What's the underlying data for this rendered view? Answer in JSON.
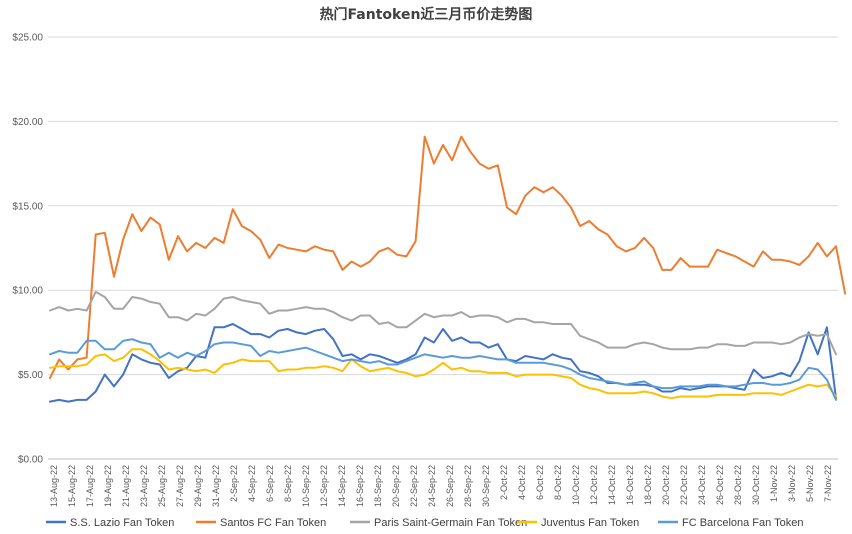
{
  "chart_data": {
    "type": "line",
    "title": "热门Fantoken近三月币价走势图",
    "xlabel": "",
    "ylabel": "",
    "ylim": [
      0,
      25
    ],
    "y_ticks": [
      "$0.00",
      "$5.00",
      "$10.00",
      "$15.00",
      "$20.00",
      "$25.00"
    ],
    "y_tick_values": [
      0,
      5,
      10,
      15,
      20,
      25
    ],
    "grid": "horizontal",
    "legend_position": "bottom",
    "x_tick_labels": [
      "13-Aug-22",
      "15-Aug-22",
      "17-Aug-22",
      "19-Aug-22",
      "21-Aug-22",
      "23-Aug-22",
      "25-Aug-22",
      "27-Aug-22",
      "29-Aug-22",
      "31-Aug-22",
      "2-Sep-22",
      "4-Sep-22",
      "6-Sep-22",
      "8-Sep-22",
      "10-Sep-22",
      "12-Sep-22",
      "14-Sep-22",
      "16-Sep-22",
      "18-Sep-22",
      "20-Sep-22",
      "22-Sep-22",
      "24-Sep-22",
      "26-Sep-22",
      "28-Sep-22",
      "30-Sep-22",
      "2-Oct-22",
      "4-Oct-22",
      "6-Oct-22",
      "8-Oct-22",
      "10-Oct-22",
      "12-Oct-22",
      "14-Oct-22",
      "16-Oct-22",
      "18-Oct-22",
      "20-Oct-22",
      "22-Oct-22",
      "24-Oct-22",
      "26-Oct-22",
      "28-Oct-22",
      "30-Oct-22",
      "1-Nov-22",
      "3-Nov-22",
      "5-Nov-22",
      "7-Nov-22"
    ],
    "series": [
      {
        "name": "S.S. Lazio Fan Token",
        "color": "#4472C4",
        "values": [
          3.4,
          3.5,
          3.4,
          3.5,
          3.5,
          4.0,
          5.0,
          4.3,
          5.0,
          6.2,
          5.9,
          5.7,
          5.6,
          4.8,
          5.2,
          5.4,
          6.1,
          6.0,
          7.8,
          7.8,
          8.0,
          7.7,
          7.4,
          7.4,
          7.2,
          7.6,
          7.7,
          7.5,
          7.4,
          7.6,
          7.7,
          7.1,
          6.1,
          6.2,
          5.9,
          6.2,
          6.1,
          5.9,
          5.7,
          5.9,
          6.2,
          7.2,
          6.9,
          7.7,
          7.0,
          7.2,
          6.9,
          6.9,
          6.6,
          6.8,
          5.9,
          5.8,
          6.1,
          6.0,
          5.9,
          6.2,
          6.0,
          5.9,
          5.2,
          5.1,
          4.9,
          4.5,
          4.5,
          4.4,
          4.4,
          4.4,
          4.3,
          4.0,
          4.0,
          4.2,
          4.1,
          4.2,
          4.3,
          4.3,
          4.3,
          4.2,
          4.1,
          5.3,
          4.8,
          4.9,
          5.1,
          4.9,
          5.8,
          7.5,
          6.2,
          7.8,
          3.6
        ]
      },
      {
        "name": "Santos FC Fan Token",
        "color": "#ED7D31",
        "values": [
          4.8,
          5.9,
          5.3,
          5.9,
          6.0,
          13.3,
          13.4,
          10.8,
          13.0,
          14.5,
          13.5,
          14.3,
          13.9,
          11.8,
          13.2,
          12.3,
          12.8,
          12.5,
          13.1,
          12.8,
          14.8,
          13.8,
          13.5,
          13.0,
          11.9,
          12.7,
          12.5,
          12.4,
          12.3,
          12.6,
          12.4,
          12.3,
          11.2,
          11.7,
          11.4,
          11.7,
          12.3,
          12.5,
          12.1,
          12.0,
          12.9,
          19.1,
          17.5,
          18.6,
          17.7,
          19.1,
          18.2,
          17.5,
          17.2,
          17.4,
          14.9,
          14.5,
          15.6,
          16.1,
          15.8,
          16.1,
          15.6,
          14.9,
          13.8,
          14.1,
          13.6,
          13.3,
          12.6,
          12.3,
          12.5,
          13.1,
          12.5,
          11.2,
          11.2,
          11.9,
          11.4,
          11.4,
          11.4,
          12.4,
          12.2,
          12.0,
          11.7,
          11.4,
          12.3,
          11.8,
          11.8,
          11.7,
          11.5,
          12.0,
          12.8,
          12.0,
          12.6,
          9.8
        ]
      },
      {
        "name": "Paris Saint-Germain Fan Token",
        "color": "#A5A5A5",
        "values": [
          8.8,
          9.0,
          8.8,
          8.9,
          8.8,
          9.9,
          9.6,
          8.9,
          8.9,
          9.6,
          9.5,
          9.3,
          9.2,
          8.4,
          8.4,
          8.2,
          8.6,
          8.5,
          8.9,
          9.5,
          9.6,
          9.4,
          9.3,
          9.2,
          8.6,
          8.8,
          8.8,
          8.9,
          9.0,
          8.9,
          8.9,
          8.7,
          8.4,
          8.2,
          8.5,
          8.5,
          8.0,
          8.1,
          7.8,
          7.8,
          8.2,
          8.6,
          8.4,
          8.5,
          8.5,
          8.7,
          8.4,
          8.5,
          8.5,
          8.4,
          8.1,
          8.3,
          8.3,
          8.1,
          8.1,
          8.0,
          8.0,
          8.0,
          7.3,
          7.1,
          6.9,
          6.6,
          6.6,
          6.6,
          6.8,
          6.9,
          6.8,
          6.6,
          6.5,
          6.5,
          6.5,
          6.6,
          6.6,
          6.8,
          6.8,
          6.7,
          6.7,
          6.9,
          6.9,
          6.9,
          6.8,
          6.9,
          7.2,
          7.4,
          7.3,
          7.4,
          6.2
        ]
      },
      {
        "name": "Juventus Fan Token",
        "color": "#FFC000",
        "values": [
          5.4,
          5.5,
          5.5,
          5.5,
          5.6,
          6.1,
          6.2,
          5.8,
          6.0,
          6.5,
          6.5,
          6.2,
          5.8,
          5.3,
          5.4,
          5.3,
          5.2,
          5.3,
          5.1,
          5.6,
          5.7,
          5.9,
          5.8,
          5.8,
          5.8,
          5.2,
          5.3,
          5.3,
          5.4,
          5.4,
          5.5,
          5.4,
          5.2,
          5.9,
          5.5,
          5.2,
          5.3,
          5.4,
          5.2,
          5.1,
          4.9,
          5.0,
          5.3,
          5.7,
          5.3,
          5.4,
          5.2,
          5.2,
          5.1,
          5.1,
          5.1,
          4.9,
          5.0,
          5.0,
          5.0,
          5.0,
          4.9,
          4.8,
          4.4,
          4.2,
          4.1,
          3.9,
          3.9,
          3.9,
          3.9,
          4.0,
          3.9,
          3.7,
          3.6,
          3.7,
          3.7,
          3.7,
          3.7,
          3.8,
          3.8,
          3.8,
          3.8,
          3.9,
          3.9,
          3.9,
          3.8,
          4.0,
          4.2,
          4.4,
          4.3,
          4.4,
          3.7
        ]
      },
      {
        "name": "FC Barcelona Fan Token",
        "color": "#5B9BD5",
        "values": [
          6.2,
          6.4,
          6.3,
          6.3,
          7.0,
          7.0,
          6.5,
          6.5,
          7.0,
          7.1,
          6.9,
          6.8,
          6.0,
          6.3,
          6.0,
          6.3,
          6.1,
          6.4,
          6.8,
          6.9,
          6.9,
          6.8,
          6.7,
          6.1,
          6.4,
          6.3,
          6.4,
          6.5,
          6.6,
          6.4,
          6.2,
          6.0,
          5.8,
          5.9,
          5.8,
          5.7,
          5.8,
          5.6,
          5.6,
          5.8,
          6.0,
          6.2,
          6.1,
          6.0,
          6.1,
          6.0,
          6.0,
          6.1,
          6.0,
          5.9,
          5.9,
          5.7,
          5.7,
          5.7,
          5.7,
          5.6,
          5.5,
          5.3,
          5.0,
          4.8,
          4.7,
          4.6,
          4.5,
          4.4,
          4.5,
          4.6,
          4.3,
          4.2,
          4.2,
          4.3,
          4.3,
          4.3,
          4.4,
          4.4,
          4.3,
          4.3,
          4.4,
          4.5,
          4.5,
          4.4,
          4.4,
          4.5,
          4.7,
          5.4,
          5.3,
          4.7,
          3.5
        ]
      }
    ]
  }
}
